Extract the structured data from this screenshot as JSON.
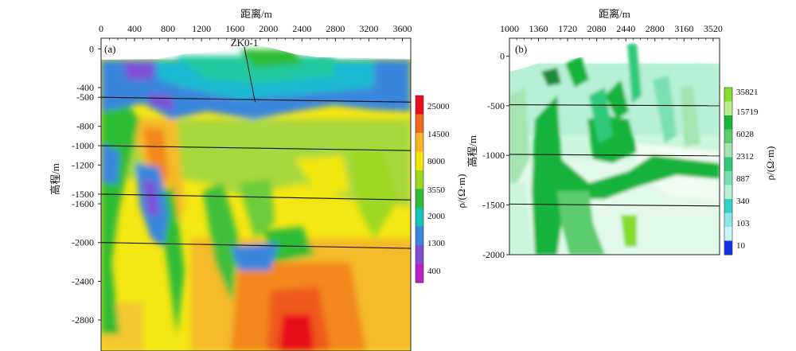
{
  "chart_data": [
    {
      "type": "heatmap",
      "panel_label": "(a)",
      "xlabel": "距离/m",
      "ylabel": "高程/m",
      "x_ticks": [
        0,
        400,
        800,
        1200,
        1600,
        2000,
        2400,
        2800,
        3200,
        3600
      ],
      "y_ticks": [
        0,
        -400,
        -500,
        -800,
        -1000,
        -1200,
        -1500,
        -1600,
        -2000,
        -2400,
        -2800
      ],
      "xlim": [
        0,
        3700
      ],
      "ylim": [
        -3120,
        110
      ],
      "horizon_lines": [
        {
          "depth": -500,
          "left": -500,
          "right": -550
        },
        {
          "depth": -1000,
          "left": -1000,
          "right": -1050
        },
        {
          "depth": -1500,
          "left": -1500,
          "right": -1560
        },
        {
          "depth": -2000,
          "left": -2000,
          "right": -2060
        }
      ],
      "borehole": {
        "label": "ZK0-1",
        "top": [
          1700,
          70
        ],
        "bottom": [
          1840,
          -550
        ]
      },
      "colorbar": {
        "label": "ρ/(Ω·m)",
        "values": [
          25000,
          14500,
          8000,
          3550,
          2000,
          1300,
          400
        ],
        "colors": [
          "#e8101e",
          "#f06a1e",
          "#f7b52a",
          "#f0e60a",
          "#9ed822",
          "#2fbc36",
          "#18c2ba",
          "#3a86dd",
          "#7f4fd6",
          "#b81fc8"
        ]
      }
    },
    {
      "type": "heatmap",
      "panel_label": "(b)",
      "xlabel": "距离/m",
      "ylabel": "高程/m",
      "x_ticks": [
        1000,
        1360,
        1720,
        2080,
        2440,
        2800,
        3160,
        3520
      ],
      "y_ticks": [
        0,
        -500,
        -1000,
        -1500,
        -2000
      ],
      "xlim": [
        1000,
        3600
      ],
      "ylim": [
        -2000,
        180
      ],
      "horizon_lines": [
        {
          "depth": -500,
          "left": -490,
          "right": -500
        },
        {
          "depth": -1000,
          "left": -990,
          "right": -1005
        },
        {
          "depth": -1500,
          "left": -1490,
          "right": -1510
        }
      ],
      "colorbar": {
        "label": "ρ/(Ω·m)",
        "values": [
          35821,
          15719,
          6028,
          2312,
          887,
          340,
          103,
          10
        ],
        "colors": [
          "#86dc2c",
          "#b8ec8e",
          "#18b43e",
          "#5ccc6e",
          "#a3e4b0",
          "#2ec97a",
          "#7adfb0",
          "#b6f0d6",
          "#2ed3c8",
          "#8ce8e8",
          "#cbf6f6",
          "#1430e6"
        ]
      }
    }
  ]
}
